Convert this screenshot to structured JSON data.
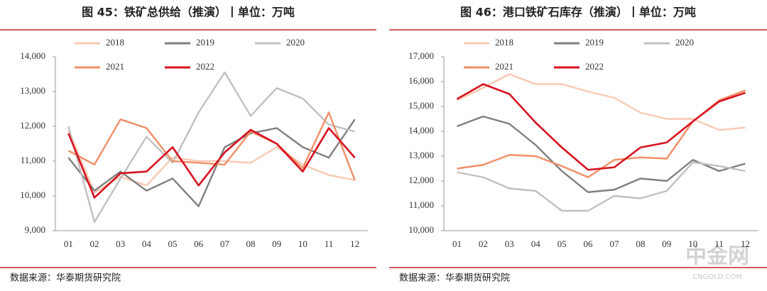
{
  "chart_data": [
    {
      "type": "line",
      "title": "图 45：铁矿总供给（推演）丨单位：万吨",
      "source": "数据来源：华泰期货研究院",
      "categories": [
        "01",
        "02",
        "03",
        "04",
        "05",
        "06",
        "07",
        "08",
        "09",
        "10",
        "11",
        "12"
      ],
      "ylim": [
        9000,
        14000
      ],
      "yticks": [
        {
          "value": 9000,
          "label": "9,000"
        },
        {
          "value": 10000,
          "label": "10,000"
        },
        {
          "value": 11000,
          "label": "11,000"
        },
        {
          "value": 12000,
          "label": "12,000"
        },
        {
          "value": 13000,
          "label": "13,000"
        },
        {
          "value": 14000,
          "label": "14,000"
        }
      ],
      "series": [
        {
          "name": "2018",
          "color": "#f9c9b3",
          "values": [
            11900,
            10100,
            10550,
            10300,
            11100,
            11000,
            11000,
            10950,
            11400,
            10900,
            10600,
            10450
          ]
        },
        {
          "name": "2019",
          "color": "#7f7f7f",
          "values": [
            11100,
            10150,
            10700,
            10150,
            10500,
            9700,
            11400,
            11800,
            11950,
            11400,
            11100,
            12200
          ]
        },
        {
          "name": "2020",
          "color": "#c0c0c0",
          "values": [
            12000,
            9250,
            10500,
            11700,
            10950,
            12400,
            13550,
            12300,
            13100,
            12800,
            12050,
            11850
          ]
        },
        {
          "name": "2021",
          "color": "#f08f68",
          "values": [
            11300,
            10900,
            12200,
            11950,
            11000,
            10950,
            10900,
            11850,
            11500,
            10800,
            12400,
            10450
          ]
        },
        {
          "name": "2022",
          "color": "#d7121f",
          "values": [
            11800,
            9950,
            10650,
            10700,
            11400,
            10300,
            11250,
            11900,
            11500,
            10700,
            11950,
            11100
          ]
        }
      ]
    },
    {
      "type": "line",
      "title": "图 46：港口铁矿石库存（推演）丨单位：万吨",
      "source": "数据来源：华泰期货研究院",
      "categories": [
        "01",
        "02",
        "03",
        "04",
        "05",
        "06",
        "07",
        "08",
        "09",
        "10",
        "11",
        "12"
      ],
      "ylim": [
        10000,
        17000
      ],
      "yticks": [
        {
          "value": 10000,
          "label": "10,000"
        },
        {
          "value": 11000,
          "label": "11,000"
        },
        {
          "value": 12000,
          "label": "12,000"
        },
        {
          "value": 13000,
          "label": "13,000"
        },
        {
          "value": 14000,
          "label": "14,000"
        },
        {
          "value": 15000,
          "label": "15,000"
        },
        {
          "value": 16000,
          "label": "16,000"
        },
        {
          "value": 17000,
          "label": "17,000"
        }
      ],
      "series": [
        {
          "name": "2018",
          "color": "#f9c9b3",
          "values": [
            15250,
            15750,
            16300,
            15900,
            15900,
            15600,
            15350,
            14750,
            14500,
            14500,
            14050,
            14150
          ]
        },
        {
          "name": "2019",
          "color": "#7f7f7f",
          "values": [
            14200,
            14600,
            14300,
            13450,
            12400,
            11550,
            11650,
            12100,
            12000,
            12850,
            12400,
            12700
          ]
        },
        {
          "name": "2020",
          "color": "#c0c0c0",
          "values": [
            12350,
            12150,
            11700,
            11600,
            10800,
            10800,
            11400,
            11300,
            11600,
            12750,
            12600,
            12400
          ]
        },
        {
          "name": "2021",
          "color": "#f08f68",
          "values": [
            12500,
            12650,
            13050,
            13000,
            12600,
            12150,
            12850,
            12950,
            12900,
            14400,
            15250,
            15650
          ]
        },
        {
          "name": "2022",
          "color": "#d7121f",
          "values": [
            15300,
            15900,
            15500,
            14350,
            13350,
            12450,
            12550,
            13350,
            13550,
            14400,
            15200,
            15550
          ]
        }
      ]
    }
  ],
  "watermark": {
    "name": "中金网",
    "site": "CNGOLD.COM"
  }
}
